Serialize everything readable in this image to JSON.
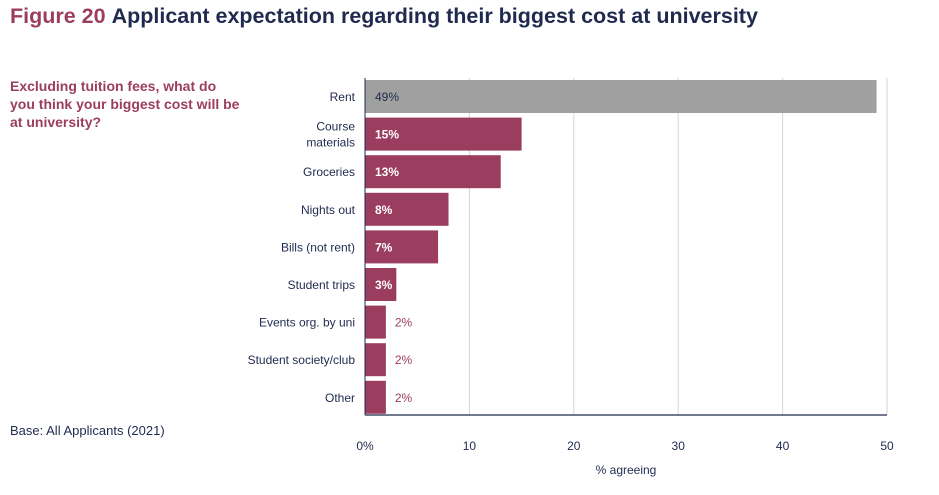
{
  "figure_label": "Figure 20",
  "figure_title": "Applicant expectation regarding their biggest cost at university",
  "question": "Excluding tuition fees, what do you think your biggest cost will be at university?",
  "base_note": "Base: All Applicants (2021)",
  "colors": {
    "highlight_bar": "#a0a0a0",
    "bar": "#9b3d5e",
    "text_dark": "#1f2a4e",
    "grid": "#d5d5d5"
  },
  "chart_data": {
    "type": "bar",
    "orientation": "horizontal",
    "categories": [
      [
        "Rent"
      ],
      [
        "Course",
        "materials"
      ],
      [
        "Groceries"
      ],
      [
        "Nights out"
      ],
      [
        "Bills (not rent)"
      ],
      [
        "Student trips"
      ],
      [
        "Events org. by uni"
      ],
      [
        "Student society/club"
      ],
      [
        "Other"
      ]
    ],
    "values": [
      49,
      15,
      13,
      8,
      7,
      3,
      2,
      2,
      2
    ],
    "value_labels": [
      "49%",
      "15%",
      "13%",
      "8%",
      "7%",
      "3%",
      "2%",
      "2%",
      "2%"
    ],
    "highlight_index": 0,
    "xlabel": "% agreeing",
    "xlim": [
      0,
      50
    ],
    "ticks": [
      0,
      10,
      20,
      30,
      40,
      50
    ],
    "tick_labels": [
      "0%",
      "10",
      "20",
      "30",
      "40",
      "50"
    ],
    "grid": true
  }
}
